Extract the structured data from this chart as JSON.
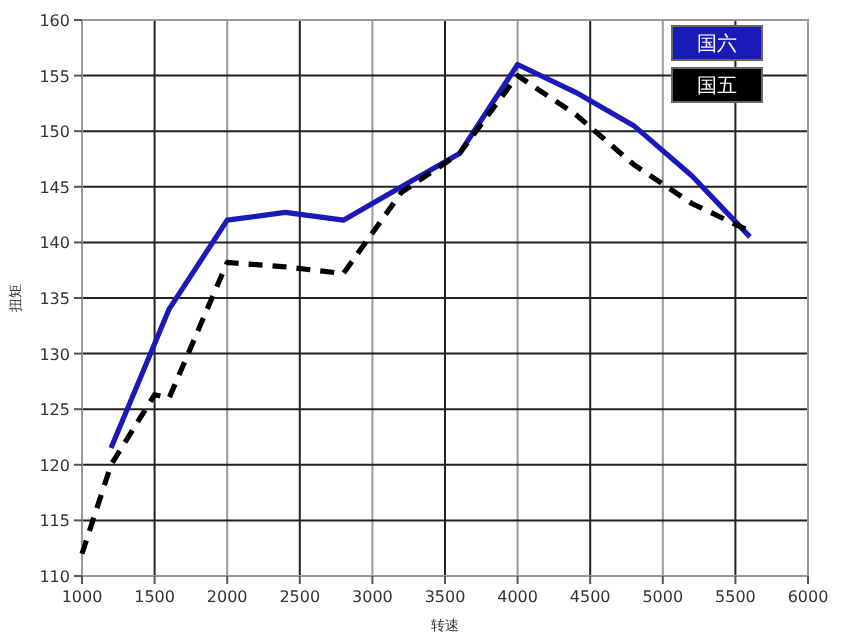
{
  "chart_data": {
    "type": "line",
    "xlabel": "转速",
    "ylabel": "扭矩",
    "xlim": [
      1000,
      6000
    ],
    "xticks": [
      1000,
      1500,
      2000,
      2500,
      3000,
      3500,
      4000,
      4500,
      5000,
      5500,
      6000
    ],
    "ylim": [
      110,
      160
    ],
    "yticks": [
      110,
      115,
      120,
      125,
      130,
      135,
      140,
      145,
      150,
      155,
      160
    ],
    "grid": true,
    "legend": "top right",
    "marker": "none",
    "series": [
      {
        "name": "国六",
        "color": "#1a1ab8",
        "line_style": "solid",
        "x": [
          1200,
          1600,
          2000,
          2400,
          2800,
          3200,
          3600,
          4000,
          4400,
          4800,
          5200,
          5600
        ],
        "values": [
          121.5,
          134,
          142,
          142.7,
          142,
          145,
          148,
          156,
          153.5,
          150.5,
          146,
          140.5
        ]
      },
      {
        "name": "国五",
        "color": "#000000",
        "line_style": "dashed",
        "x": [
          1000,
          1200,
          1500,
          1600,
          2000,
          2400,
          2800,
          3200,
          3600,
          4000,
          4400,
          4800,
          5200,
          5600
        ],
        "values": [
          112,
          120,
          126.3,
          126,
          138.2,
          137.8,
          137.2,
          144.5,
          148,
          155,
          151.5,
          147,
          143.5,
          141
        ]
      }
    ]
  }
}
